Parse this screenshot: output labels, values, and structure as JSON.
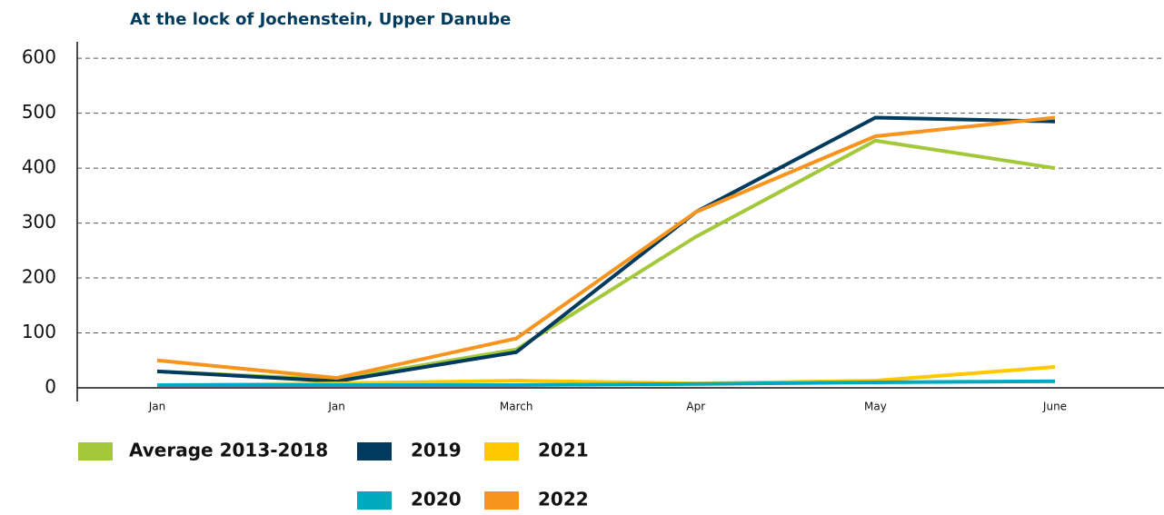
{
  "chart_data": {
    "type": "line",
    "title": "At the lock of Jochenstein, Upper Danube",
    "categories": [
      "Jan",
      "Jan",
      "March",
      "Apr",
      "May",
      "June"
    ],
    "series": [
      {
        "name": "Average 2013-2018",
        "color": "#a3c93a",
        "values": [
          30,
          15,
          70,
          275,
          450,
          400
        ]
      },
      {
        "name": "2019",
        "color": "#003a5d",
        "values": [
          30,
          12,
          65,
          320,
          492,
          485
        ]
      },
      {
        "name": "2021",
        "color": "#ffc800",
        "values": [
          5,
          8,
          13,
          8,
          13,
          38
        ]
      },
      {
        "name": "2020",
        "color": "#00a9bd",
        "values": [
          5,
          5,
          5,
          7,
          10,
          12
        ]
      },
      {
        "name": "2022",
        "color": "#f7941d",
        "values": [
          50,
          18,
          90,
          320,
          458,
          492
        ]
      }
    ],
    "ylim": [
      0,
      630
    ],
    "yticks": [
      0,
      100,
      200,
      300,
      400,
      500,
      600
    ],
    "grid": true
  }
}
